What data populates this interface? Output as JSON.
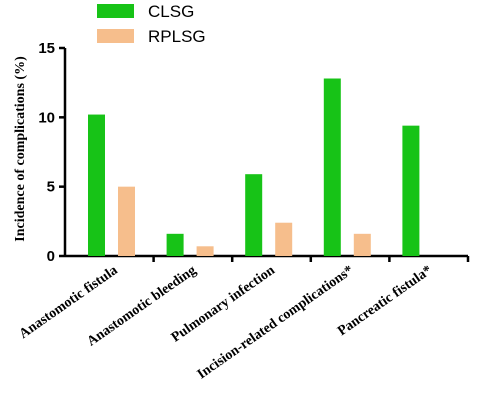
{
  "chart_data": {
    "type": "bar",
    "title": "",
    "xlabel": "",
    "ylabel": "Incidence of complications (%)",
    "ylim": [
      0,
      15
    ],
    "yticks": [
      0,
      5,
      10,
      15
    ],
    "categories": [
      "Anastomotic fistula",
      "Anastomotic bleeding",
      "Pulmonary infection",
      "Incision-related complications*",
      "Pancreatic fistula*"
    ],
    "series": [
      {
        "name": "CLSG",
        "color": "#17c317",
        "values": [
          10.2,
          1.6,
          5.9,
          12.8,
          9.4
        ]
      },
      {
        "name": "RPLSG",
        "color": "#f6be8c",
        "values": [
          5.0,
          0.7,
          2.4,
          1.6,
          0
        ]
      }
    ],
    "legend_position": "top-left",
    "grid": false
  }
}
